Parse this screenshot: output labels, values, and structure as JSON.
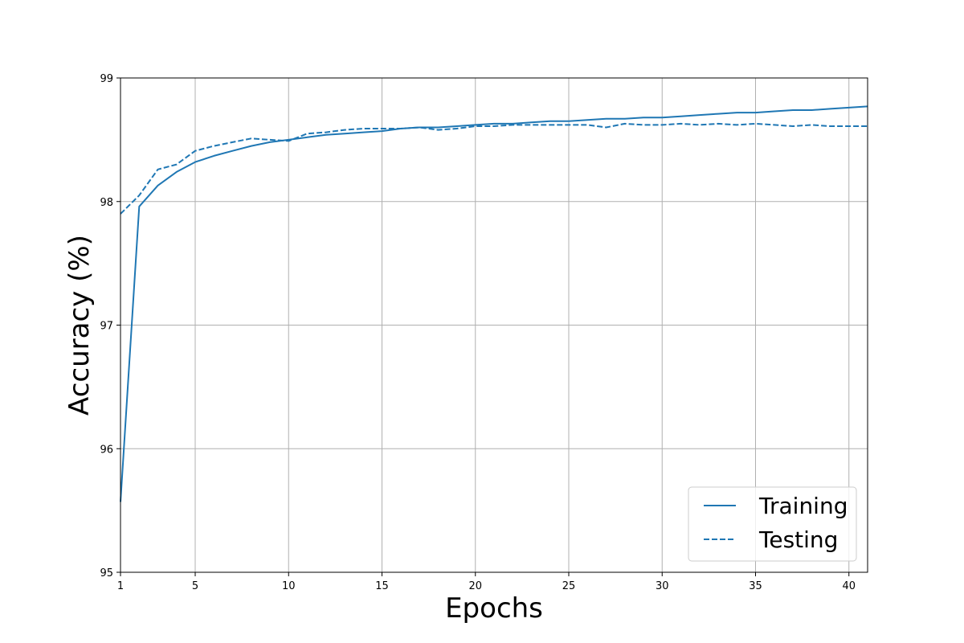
{
  "chart_data": {
    "type": "line",
    "title": "",
    "xlabel": "Epochs",
    "ylabel": "Accuracy (%)",
    "xlim": [
      1,
      41
    ],
    "ylim": [
      95,
      99
    ],
    "xticks": [
      1,
      5,
      10,
      15,
      20,
      25,
      30,
      35,
      40
    ],
    "yticks": [
      95,
      96,
      97,
      98,
      99
    ],
    "grid": true,
    "legend_position": "lower-right",
    "color": "#1f77b4",
    "series": [
      {
        "name": "Training",
        "style": "solid",
        "x": [
          1,
          2,
          3,
          4,
          5,
          6,
          7,
          8,
          9,
          10,
          11,
          12,
          13,
          14,
          15,
          16,
          17,
          18,
          19,
          20,
          21,
          22,
          23,
          24,
          25,
          26,
          27,
          28,
          29,
          30,
          31,
          32,
          33,
          34,
          35,
          36,
          37,
          38,
          39,
          40,
          41
        ],
        "values": [
          95.57,
          97.96,
          98.13,
          98.24,
          98.32,
          98.37,
          98.41,
          98.45,
          98.48,
          98.5,
          98.52,
          98.54,
          98.55,
          98.56,
          98.57,
          98.59,
          98.6,
          98.6,
          98.61,
          98.62,
          98.63,
          98.63,
          98.64,
          98.65,
          98.65,
          98.66,
          98.67,
          98.67,
          98.68,
          98.68,
          98.69,
          98.7,
          98.71,
          98.72,
          98.72,
          98.73,
          98.74,
          98.74,
          98.75,
          98.76,
          98.77
        ]
      },
      {
        "name": "Testing",
        "style": "dashed",
        "x": [
          1,
          2,
          3,
          4,
          5,
          6,
          7,
          8,
          9,
          10,
          11,
          12,
          13,
          14,
          15,
          16,
          17,
          18,
          19,
          20,
          21,
          22,
          23,
          24,
          25,
          26,
          27,
          28,
          29,
          30,
          31,
          32,
          33,
          34,
          35,
          36,
          37,
          38,
          39,
          40,
          41
        ],
        "values": [
          97.9,
          98.05,
          98.26,
          98.3,
          98.41,
          98.45,
          98.48,
          98.51,
          98.5,
          98.49,
          98.55,
          98.56,
          98.58,
          98.59,
          98.59,
          98.59,
          98.6,
          98.58,
          98.59,
          98.61,
          98.61,
          98.62,
          98.62,
          98.62,
          98.62,
          98.62,
          98.6,
          98.63,
          98.62,
          98.62,
          98.63,
          98.62,
          98.63,
          98.62,
          98.63,
          98.62,
          98.61,
          98.62,
          98.61,
          98.61,
          98.61
        ]
      }
    ]
  }
}
